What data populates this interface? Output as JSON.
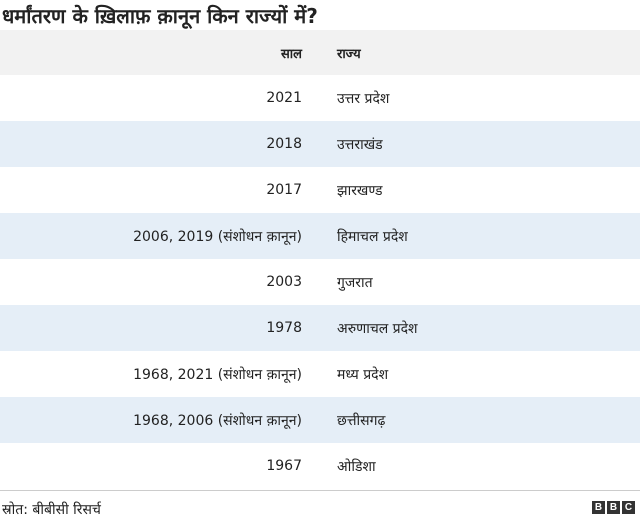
{
  "title": "धर्मांतरण के ख़िलाफ़ क़ानून किन राज्यों में?",
  "table": {
    "header": [
      "साल",
      "राज्य"
    ],
    "rows": [
      [
        "2021",
        "उत्तर प्रदेश"
      ],
      [
        "2018",
        "उत्तराखंड"
      ],
      [
        "2017",
        "झारखण्ड"
      ],
      [
        "2006, 2019 (संशोधन क़ानून)",
        "हिमाचल प्रदेश"
      ],
      [
        "2003",
        "गुजरात"
      ],
      [
        "1978",
        "अरुणाचल प्रदेश"
      ],
      [
        "1968, 2021 (संशोधन क़ानून)",
        "मध्य प्रदेश"
      ],
      [
        "1968, 2006 (संशोधन क़ानून)",
        "छत्तीसगढ़"
      ],
      [
        "1967",
        "ओडिशा"
      ]
    ]
  },
  "source": "स्रोत: बीबीसी रिसर्च",
  "logo": [
    "B",
    "B",
    "C"
  ]
}
